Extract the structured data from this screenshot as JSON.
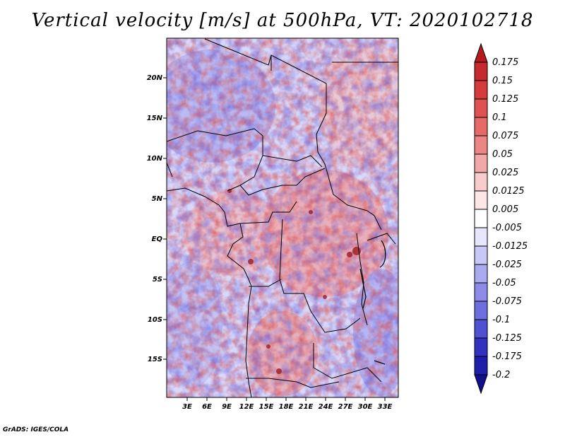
{
  "title": "Vertical velocity [m/s] at 500hPa, VT: 2020102718",
  "credit": "GrADS: IGES/COLA",
  "map": {
    "lat_labels": [
      "20N",
      "15N",
      "10N",
      "5N",
      "EQ",
      "5S",
      "10S",
      "15S"
    ],
    "lon_labels": [
      "3E",
      "6E",
      "9E",
      "12E",
      "15E",
      "18E",
      "21E",
      "24E",
      "27E",
      "30E",
      "33E"
    ]
  },
  "colorbar": {
    "labels": [
      "0.175",
      "0.15",
      "0.125",
      "0.1",
      "0.075",
      "0.05",
      "0.025",
      "0.0125",
      "0.005",
      "-0.005",
      "-0.0125",
      "-0.025",
      "-0.05",
      "-0.075",
      "-0.1",
      "-0.125",
      "-0.175",
      "-0.2"
    ],
    "colors": [
      "#b41a1e",
      "#c42a2e",
      "#d43c3c",
      "#e05252",
      "#e66a6a",
      "#ec8686",
      "#f2a8a8",
      "#f8cccc",
      "#fde6e6",
      "#ffffff",
      "#e6e6ff",
      "#c8c8f8",
      "#aaaaf0",
      "#8c8ce8",
      "#6e6ee0",
      "#5050d2",
      "#3232c0",
      "#1e1eaa",
      "#10108c"
    ]
  }
}
